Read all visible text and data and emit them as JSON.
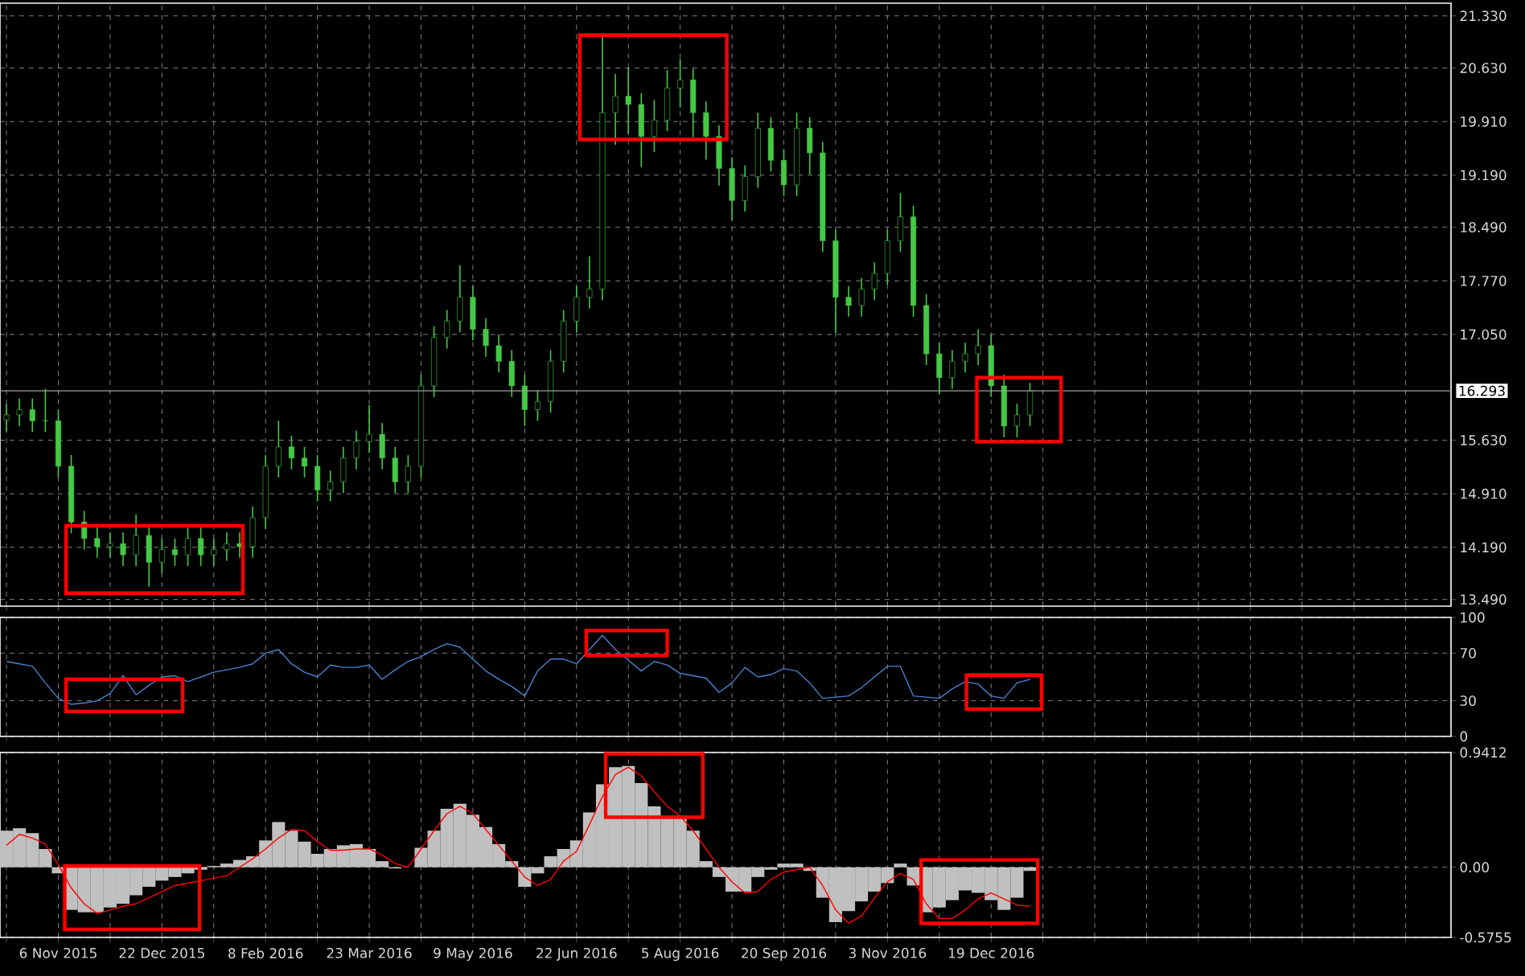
{
  "chart_data": [
    {
      "type": "candlestick",
      "color": "#45c845",
      "grid": true,
      "tick_labels": "y",
      "ylim": [
        13.4,
        21.5
      ],
      "categories": [
        null,
        null,
        null,
        null,
        null,
        null,
        null,
        null,
        null,
        null,
        null,
        null,
        null,
        null,
        null,
        null,
        null,
        null,
        null,
        null,
        null,
        null,
        null,
        null,
        null,
        null,
        null,
        null,
        null,
        null,
        null,
        null,
        null,
        null,
        null,
        null,
        null,
        null,
        null,
        null,
        null,
        null,
        null,
        null,
        null,
        null,
        null,
        null,
        null,
        null,
        null,
        null,
        null,
        null,
        null,
        null,
        null,
        null,
        null,
        null,
        null,
        null,
        null,
        null,
        null,
        null,
        null,
        null,
        null,
        null,
        null,
        null,
        null,
        null,
        null,
        null,
        null,
        null,
        null,
        null,
        null,
        null,
        null,
        null,
        null,
        null,
        null,
        null,
        null,
        null,
        null,
        null,
        null,
        null,
        null,
        null,
        null,
        null,
        null,
        null,
        null,
        null,
        null,
        null,
        null,
        null,
        null,
        null,
        null,
        null,
        null,
        null
      ],
      "yticks": [
        {
          "value": 13.49,
          "label": "13.490"
        },
        {
          "value": 14.19,
          "label": "14.190"
        },
        {
          "value": 14.91,
          "label": "14.910"
        },
        {
          "value": 15.63,
          "label": "15.630"
        },
        {
          "value": 17.05,
          "label": "17.050"
        },
        {
          "value": 17.77,
          "label": "17.770"
        },
        {
          "value": 18.49,
          "label": "18.490"
        },
        {
          "value": 19.19,
          "label": "19.190"
        },
        {
          "value": 19.91,
          "label": "19.910"
        },
        {
          "value": 20.63,
          "label": "20.630"
        },
        {
          "value": 21.33,
          "label": "21.330"
        }
      ],
      "ref_lines": [
        {
          "axis": "y",
          "value": 16.293,
          "label": "16.293",
          "color": "#a0a0a0"
        }
      ],
      "ohlc": [
        [
          15.9,
          16.12,
          15.75,
          15.97
        ],
        [
          15.97,
          16.19,
          15.82,
          16.04
        ],
        [
          16.04,
          16.19,
          15.74,
          15.89
        ],
        [
          15.89,
          16.32,
          15.74,
          15.89
        ],
        [
          15.89,
          16.04,
          15.13,
          15.28
        ],
        [
          15.28,
          15.43,
          14.38,
          14.53
        ],
        [
          14.53,
          14.68,
          14.16,
          14.31
        ],
        [
          14.31,
          14.46,
          14.05,
          14.2
        ],
        [
          14.2,
          14.39,
          14.05,
          14.24
        ],
        [
          14.24,
          14.39,
          13.94,
          14.09
        ],
        [
          14.09,
          14.63,
          13.94,
          14.35
        ],
        [
          14.35,
          14.5,
          13.66,
          13.99
        ],
        [
          13.99,
          14.31,
          13.84,
          14.16
        ],
        [
          14.16,
          14.31,
          13.94,
          14.09
        ],
        [
          14.09,
          14.46,
          13.94,
          14.31
        ],
        [
          14.31,
          14.46,
          13.94,
          14.09
        ],
        [
          14.09,
          14.31,
          13.94,
          14.16
        ],
        [
          14.16,
          14.39,
          14.01,
          14.24
        ],
        [
          14.24,
          14.39,
          14.05,
          14.2
        ],
        [
          14.2,
          14.74,
          14.05,
          14.59
        ],
        [
          14.59,
          15.43,
          14.44,
          15.28
        ],
        [
          15.28,
          15.89,
          15.13,
          15.54
        ],
        [
          15.54,
          15.69,
          15.24,
          15.39
        ],
        [
          15.39,
          15.54,
          15.13,
          15.28
        ],
        [
          15.28,
          15.43,
          14.81,
          14.96
        ],
        [
          14.96,
          15.22,
          14.81,
          15.07
        ],
        [
          15.07,
          15.54,
          14.92,
          15.39
        ],
        [
          15.39,
          15.76,
          15.24,
          15.61
        ],
        [
          15.61,
          16.1,
          15.46,
          15.71
        ],
        [
          15.71,
          15.86,
          15.24,
          15.39
        ],
        [
          15.39,
          15.54,
          14.92,
          15.07
        ],
        [
          15.07,
          15.43,
          14.92,
          15.28
        ],
        [
          15.28,
          16.51,
          15.13,
          16.36
        ],
        [
          16.36,
          17.16,
          16.21,
          17.01
        ],
        [
          17.01,
          17.38,
          16.86,
          17.23
        ],
        [
          17.23,
          17.98,
          17.08,
          17.55
        ],
        [
          17.55,
          17.7,
          16.97,
          17.12
        ],
        [
          17.12,
          17.27,
          16.75,
          16.9
        ],
        [
          16.9,
          17.05,
          16.54,
          16.69
        ],
        [
          16.69,
          16.84,
          16.21,
          16.36
        ],
        [
          16.36,
          16.51,
          15.82,
          16.04
        ],
        [
          16.04,
          16.3,
          15.89,
          16.15
        ],
        [
          16.15,
          16.84,
          16.0,
          16.69
        ],
        [
          16.69,
          17.38,
          16.54,
          17.23
        ],
        [
          17.23,
          17.7,
          17.08,
          17.55
        ],
        [
          17.55,
          18.1,
          17.4,
          17.66
        ],
        [
          17.66,
          21.07,
          17.51,
          20.03
        ],
        [
          20.03,
          20.55,
          19.6,
          20.25
        ],
        [
          20.25,
          20.63,
          19.75,
          20.14
        ],
        [
          20.14,
          20.29,
          19.3,
          19.71
        ],
        [
          19.71,
          20.2,
          19.5,
          19.93
        ],
        [
          19.93,
          20.6,
          19.78,
          20.36
        ],
        [
          20.36,
          20.75,
          20.1,
          20.47
        ],
        [
          20.47,
          20.62,
          19.7,
          20.03
        ],
        [
          20.03,
          20.18,
          19.4,
          19.71
        ],
        [
          19.71,
          19.86,
          19.05,
          19.28
        ],
        [
          19.28,
          19.43,
          18.58,
          18.85
        ],
        [
          18.85,
          19.32,
          18.7,
          19.17
        ],
        [
          19.17,
          20.03,
          19.02,
          19.82
        ],
        [
          19.82,
          19.97,
          19.24,
          19.39
        ],
        [
          19.39,
          19.54,
          18.91,
          19.06
        ],
        [
          19.06,
          20.03,
          18.91,
          19.82
        ],
        [
          19.82,
          19.97,
          19.2,
          19.49
        ],
        [
          19.49,
          19.64,
          18.16,
          18.31
        ],
        [
          18.31,
          18.46,
          17.07,
          17.55
        ],
        [
          17.55,
          17.7,
          17.29,
          17.44
        ],
        [
          17.44,
          17.81,
          17.29,
          17.66
        ],
        [
          17.66,
          18.02,
          17.51,
          17.87
        ],
        [
          17.87,
          18.46,
          17.72,
          18.31
        ],
        [
          18.31,
          18.95,
          18.16,
          18.63
        ],
        [
          18.63,
          18.78,
          17.29,
          17.44
        ],
        [
          17.44,
          17.59,
          16.64,
          16.79
        ],
        [
          16.79,
          16.94,
          16.25,
          16.47
        ],
        [
          16.47,
          16.84,
          16.32,
          16.69
        ],
        [
          16.69,
          16.94,
          16.54,
          16.79
        ],
        [
          16.79,
          17.12,
          16.64,
          16.9
        ],
        [
          16.9,
          17.05,
          16.21,
          16.36
        ],
        [
          16.36,
          16.51,
          15.67,
          15.82
        ],
        [
          15.82,
          16.12,
          15.67,
          15.97
        ],
        [
          15.97,
          16.4,
          15.82,
          16.29
        ],
        null,
        null,
        null,
        null,
        null,
        null,
        null,
        null,
        null,
        null,
        null,
        null,
        null,
        null,
        null,
        null,
        null,
        null,
        null,
        null,
        null,
        null,
        null,
        null,
        null,
        null,
        null,
        null,
        null,
        null,
        null,
        null
      ]
    },
    {
      "type": "line",
      "color": "#4a80d0",
      "grid": true,
      "tick_labels": "y",
      "ylim": [
        0,
        100
      ],
      "yticks": [
        0,
        30,
        70,
        100
      ],
      "categories": [
        null,
        null,
        null,
        null,
        null,
        null,
        null,
        null,
        null,
        null,
        null,
        null,
        null,
        null,
        null,
        null,
        null,
        null,
        null,
        null,
        null,
        null,
        null,
        null,
        null,
        null,
        null,
        null,
        null,
        null,
        null,
        null,
        null,
        null,
        null,
        null,
        null,
        null,
        null,
        null,
        null,
        null,
        null,
        null,
        null,
        null,
        null,
        null,
        null,
        null,
        null,
        null,
        null,
        null,
        null,
        null,
        null,
        null,
        null,
        null,
        null,
        null,
        null,
        null,
        null,
        null,
        null,
        null,
        null,
        null,
        null,
        null,
        null,
        null,
        null,
        null,
        null,
        null,
        null,
        null,
        null,
        null,
        null,
        null,
        null,
        null,
        null,
        null,
        null,
        null,
        null,
        null,
        null,
        null,
        null,
        null,
        null,
        null,
        null,
        null,
        null,
        null,
        null,
        null,
        null,
        null,
        null,
        null,
        null,
        null,
        null,
        null
      ],
      "values": [
        63,
        61,
        59,
        45,
        32,
        27,
        28,
        30,
        36,
        51,
        35,
        43,
        50,
        51,
        46,
        50,
        54,
        56,
        58,
        61,
        70,
        73,
        61,
        54,
        50,
        60,
        58,
        58,
        60,
        48,
        56,
        63,
        67,
        73,
        78,
        75,
        65,
        55,
        48,
        42,
        34,
        55,
        65,
        65,
        61,
        73,
        85,
        73,
        64,
        55,
        63,
        60,
        53,
        51,
        49,
        37,
        45,
        58,
        50,
        52,
        57,
        55,
        45,
        32,
        33,
        34,
        41,
        50,
        59,
        59,
        34,
        33,
        32,
        40,
        46,
        44,
        34,
        32,
        45,
        48,
        null,
        null,
        null,
        null,
        null,
        null,
        null,
        null,
        null,
        null,
        null,
        null,
        null,
        null,
        null,
        null,
        null,
        null,
        null,
        null,
        null,
        null,
        null,
        null,
        null,
        null,
        null,
        null,
        null,
        null,
        null,
        null
      ]
    },
    {
      "type": "bar",
      "grid": true,
      "ylim": [
        -0.5755,
        0.9412
      ],
      "yticks": [
        {
          "value": -0.5755,
          "label": "-0.5755"
        },
        {
          "value": 0,
          "label": "0.00"
        },
        {
          "value": 0.9412,
          "label": "0.9412"
        }
      ],
      "categories": [
        null,
        null,
        null,
        null,
        "6 Nov 2015",
        null,
        null,
        null,
        null,
        null,
        null,
        null,
        "22 Dec 2015",
        null,
        null,
        null,
        null,
        null,
        null,
        null,
        "8 Feb 2016",
        null,
        null,
        null,
        null,
        null,
        null,
        null,
        "23 Mar 2016",
        null,
        null,
        null,
        null,
        null,
        null,
        null,
        "9 May 2016",
        null,
        null,
        null,
        null,
        null,
        null,
        null,
        "22 Jun 2016",
        null,
        null,
        null,
        null,
        null,
        null,
        null,
        "5 Aug 2016",
        null,
        null,
        null,
        null,
        null,
        null,
        null,
        "20 Sep 2016",
        null,
        null,
        null,
        null,
        null,
        null,
        null,
        "3 Nov 2016",
        null,
        null,
        null,
        null,
        null,
        null,
        null,
        "19 Dec 2016",
        null,
        null,
        null,
        null,
        null,
        null,
        null,
        null,
        null,
        null,
        null,
        null,
        null,
        null,
        null,
        null,
        null,
        null,
        null,
        null,
        null,
        null,
        null,
        null,
        null,
        null,
        null,
        null,
        null,
        null,
        null,
        null,
        null,
        null,
        null
      ],
      "series": [
        {
          "type": "bar",
          "color": "#c0c0c0",
          "values": [
            0.3,
            0.32,
            0.28,
            0.15,
            -0.05,
            -0.35,
            -0.37,
            -0.37,
            -0.33,
            -0.3,
            -0.23,
            -0.16,
            -0.11,
            -0.08,
            -0.05,
            -0.02,
            0.01,
            0.03,
            0.06,
            0.09,
            0.22,
            0.37,
            0.3,
            0.21,
            0.11,
            0.15,
            0.18,
            0.19,
            0.15,
            0.05,
            -0.01,
            0.0,
            0.16,
            0.3,
            0.48,
            0.52,
            0.43,
            0.33,
            0.19,
            0.05,
            -0.16,
            -0.05,
            0.09,
            0.15,
            0.22,
            0.45,
            0.68,
            0.82,
            0.83,
            0.69,
            0.5,
            0.42,
            0.4,
            0.3,
            0.05,
            -0.08,
            -0.2,
            -0.2,
            -0.08,
            -0.02,
            0.03,
            0.03,
            -0.03,
            -0.25,
            -0.45,
            -0.36,
            -0.28,
            -0.2,
            -0.13,
            0.03,
            -0.15,
            -0.37,
            -0.33,
            -0.27,
            -0.19,
            -0.21,
            -0.27,
            -0.35,
            -0.25,
            -0.03,
            null,
            null,
            null,
            null,
            null,
            null,
            null,
            null,
            null,
            null,
            null,
            null,
            null,
            null,
            null,
            null,
            null,
            null,
            null,
            null,
            null,
            null,
            null,
            null,
            null,
            null,
            null,
            null,
            null,
            null,
            null,
            null
          ]
        },
        {
          "type": "line",
          "color": "#ff0000",
          "values": [
            0.18,
            0.27,
            0.24,
            0.19,
            0.02,
            -0.17,
            -0.3,
            -0.38,
            -0.35,
            -0.32,
            -0.3,
            -0.25,
            -0.2,
            -0.15,
            -0.13,
            -0.11,
            -0.09,
            -0.07,
            0.0,
            0.07,
            0.15,
            0.24,
            0.31,
            0.3,
            0.21,
            0.14,
            0.14,
            0.15,
            0.15,
            0.1,
            0.03,
            0.0,
            0.15,
            0.3,
            0.44,
            0.5,
            0.44,
            0.31,
            0.18,
            0.05,
            -0.08,
            -0.15,
            -0.1,
            0.05,
            0.13,
            0.35,
            0.58,
            0.76,
            0.82,
            0.75,
            0.62,
            0.5,
            0.42,
            0.3,
            0.15,
            0.0,
            -0.12,
            -0.21,
            -0.2,
            -0.1,
            -0.04,
            -0.02,
            0.0,
            -0.15,
            -0.35,
            -0.46,
            -0.4,
            -0.25,
            -0.12,
            -0.05,
            -0.1,
            -0.3,
            -0.42,
            -0.42,
            -0.35,
            -0.26,
            -0.21,
            -0.26,
            -0.31,
            -0.32,
            null,
            null,
            null,
            null,
            null,
            null,
            null,
            null,
            null,
            null,
            null,
            null,
            null,
            null,
            null,
            null,
            null,
            null,
            null,
            null,
            null,
            null,
            null,
            null,
            null,
            null,
            null,
            null,
            null,
            null,
            null,
            null
          ]
        }
      ]
    }
  ]
}
